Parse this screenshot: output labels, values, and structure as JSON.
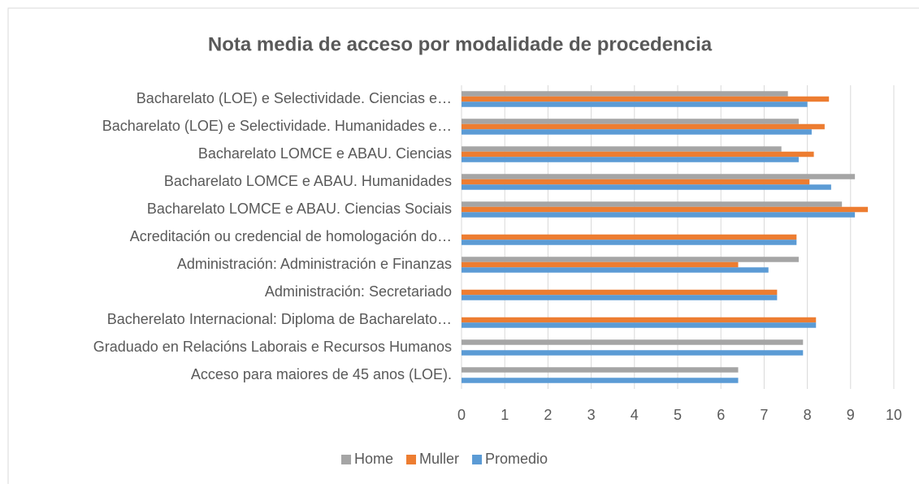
{
  "chart_data": {
    "type": "hbar",
    "title": "Nota media de acceso por modalidade de procedencia",
    "categories": [
      "Bacharelato (LOE) e Selectividade. Ciencias e…",
      "Bacharelato (LOE) e Selectividade. Humanidades e…",
      "Bacharelato LOMCE e ABAU. Ciencias",
      "Bacharelato LOMCE e ABAU. Humanidades",
      "Bacharelato LOMCE e ABAU. Ciencias Sociais",
      "Acreditación ou credencial de homologación do…",
      "Administración: Administración e Finanzas",
      "Administración: Secretariado",
      "Bacherelato Internacional: Diploma de Bacharelato…",
      "Graduado en Relacións Laborais e Recursos Humanos",
      "Acceso para maiores de 45 anos (LOE)."
    ],
    "series": [
      {
        "name": "Home",
        "color": "#a5a5a5",
        "values": [
          7.55,
          7.8,
          7.4,
          9.1,
          8.8,
          null,
          7.8,
          null,
          null,
          7.9,
          6.4
        ]
      },
      {
        "name": "Muller",
        "color": "#ed7d31",
        "values": [
          8.5,
          8.4,
          8.15,
          8.05,
          9.4,
          7.75,
          6.4,
          7.3,
          8.2,
          null,
          null
        ]
      },
      {
        "name": "Promedio",
        "color": "#5b9bd5",
        "values": [
          8.0,
          8.1,
          7.8,
          8.55,
          9.1,
          7.75,
          7.1,
          7.3,
          8.2,
          7.9,
          6.4
        ]
      }
    ],
    "xlim": [
      0,
      10
    ],
    "xticks": [
      0,
      1,
      2,
      3,
      4,
      5,
      6,
      7,
      8,
      9,
      10
    ],
    "grid": true,
    "legend": "bottom"
  }
}
